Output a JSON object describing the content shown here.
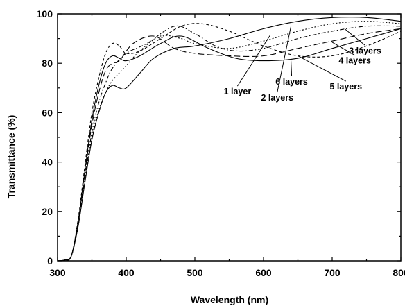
{
  "chart_data": {
    "type": "line",
    "title": "",
    "xlabel": "Wavelength (nm)",
    "ylabel": "Transmittance (%)",
    "xlim": [
      300,
      800
    ],
    "ylim": [
      0,
      100
    ],
    "xticks": [
      300,
      400,
      500,
      600,
      700,
      800
    ],
    "yticks": [
      0,
      20,
      40,
      60,
      80,
      100
    ],
    "grid": false,
    "legend": "none",
    "series": [
      {
        "name": "1 layer",
        "dash": "solid",
        "x": [
          300,
          310,
          320,
          330,
          340,
          350,
          360,
          370,
          380,
          390,
          400,
          420,
          440,
          470,
          500,
          550,
          600,
          650,
          700,
          750,
          800
        ],
        "y": [
          0,
          0.3,
          2,
          14,
          32,
          49,
          60,
          68,
          71,
          70,
          70,
          76,
          82,
          86,
          87,
          90,
          94,
          97,
          98.5,
          98.5,
          97
        ]
      },
      {
        "name": "2 layers",
        "dash": "dot",
        "x": [
          300,
          310,
          320,
          330,
          340,
          350,
          360,
          370,
          380,
          400,
          420,
          450,
          480,
          500,
          550,
          600,
          650,
          700,
          750,
          800
        ],
        "y": [
          0,
          0.3,
          2,
          14,
          33,
          50,
          61,
          68,
          73,
          79,
          85,
          91,
          90,
          88,
          86,
          89,
          93,
          96,
          97,
          96
        ]
      },
      {
        "name": "3 layers",
        "dash": "dashdot",
        "x": [
          300,
          310,
          320,
          330,
          340,
          350,
          360,
          370,
          380,
          400,
          430,
          470,
          500,
          530,
          560,
          600,
          650,
          700,
          750,
          800
        ],
        "y": [
          0,
          0.3,
          2,
          15,
          34,
          52,
          64,
          72,
          78,
          84,
          88,
          95,
          92,
          87,
          85,
          86,
          90,
          93,
          95,
          95
        ]
      },
      {
        "name": "4 layers",
        "dash": "longdash",
        "x": [
          300,
          310,
          320,
          330,
          340,
          350,
          360,
          370,
          380,
          390,
          410,
          440,
          470,
          500,
          550,
          600,
          650,
          700,
          750,
          800
        ],
        "y": [
          0,
          0.3,
          2,
          16,
          36,
          55,
          68,
          77,
          80,
          81,
          88,
          91,
          86,
          84,
          83,
          83,
          86,
          89,
          92,
          94
        ]
      },
      {
        "name": "5 layers",
        "dash": "solid",
        "x": [
          300,
          310,
          320,
          330,
          340,
          350,
          360,
          370,
          380,
          390,
          400,
          420,
          450,
          480,
          520,
          560,
          600,
          650,
          700,
          750,
          800
        ],
        "y": [
          0,
          0.3,
          2,
          16,
          37,
          57,
          71,
          80,
          83,
          82,
          81,
          83,
          88,
          91,
          86,
          82,
          81,
          82,
          86,
          90,
          94
        ]
      },
      {
        "name": "6 layers",
        "dash": "dash",
        "x": [
          300,
          310,
          320,
          330,
          340,
          350,
          360,
          370,
          380,
          390,
          400,
          420,
          450,
          480,
          510,
          550,
          600,
          650,
          700,
          750,
          800
        ],
        "y": [
          0,
          0.3,
          2,
          17,
          39,
          60,
          74,
          84,
          88,
          87,
          84,
          85,
          90,
          95,
          96,
          93,
          87,
          83,
          83,
          87,
          93
        ]
      }
    ],
    "annotations": [
      {
        "text": "1 layer",
        "x": 562,
        "y": 68.5,
        "to_x": 610,
        "to_y": 91.5
      },
      {
        "text": "2 layers",
        "x": 620,
        "y": 66,
        "to_x": 640,
        "to_y": 95
      },
      {
        "text": "3 layers",
        "x": 748,
        "y": 85,
        "to_x": 718,
        "to_y": 94
      },
      {
        "text": "4 layers",
        "x": 733,
        "y": 81,
        "to_x": 700,
        "to_y": 88.5
      },
      {
        "text": "5 layers",
        "x": 720,
        "y": 70.5,
        "to_x": 650,
        "to_y": 83
      },
      {
        "text": "6 layers",
        "x": 641,
        "y": 72.5,
        "to_x": 640,
        "to_y": 81
      }
    ]
  }
}
